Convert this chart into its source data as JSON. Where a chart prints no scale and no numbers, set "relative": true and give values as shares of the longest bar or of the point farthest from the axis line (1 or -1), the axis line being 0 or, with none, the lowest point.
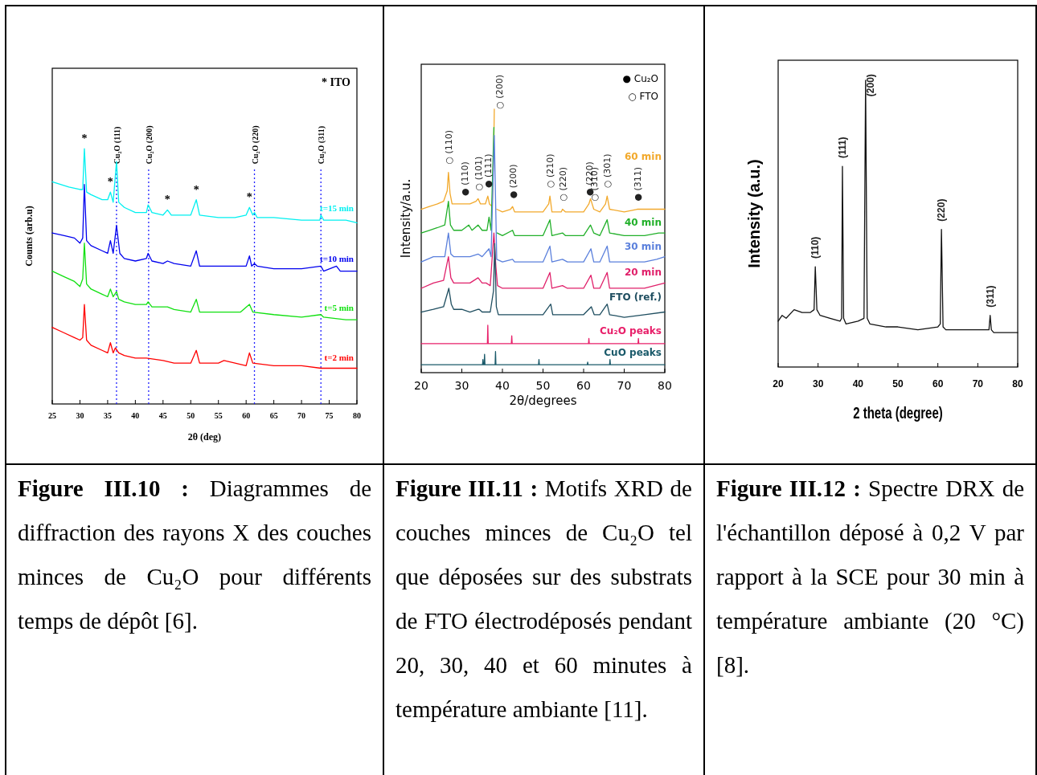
{
  "chart_data": [
    {
      "type": "line",
      "relative": true,
      "xlim": [
        25,
        80
      ],
      "xticks": [
        25,
        30,
        35,
        40,
        45,
        50,
        55,
        60,
        65,
        70,
        75,
        80
      ],
      "xlabel": "2θ  (deg)",
      "ylabel": "Counts (arb.u)",
      "series": [
        {
          "name": "t=15 min",
          "color": "#00f0f0",
          "x": [
            25,
            28,
            30,
            30.5,
            30.8,
            31.2,
            32,
            34,
            35,
            35.5,
            36,
            36.6,
            37,
            38,
            40,
            42,
            42.3,
            43,
            45,
            45.8,
            46.5,
            50,
            51,
            51.6,
            55,
            58,
            60,
            60.6,
            61.2,
            61.5,
            62,
            65,
            70,
            73.3,
            73.5,
            74,
            78,
            80
          ],
          "values": [
            0.87,
            0.85,
            0.84,
            0.84,
            1.0,
            0.83,
            0.82,
            0.8,
            0.8,
            0.83,
            0.79,
            0.95,
            0.79,
            0.77,
            0.75,
            0.75,
            0.78,
            0.75,
            0.74,
            0.76,
            0.74,
            0.74,
            0.8,
            0.74,
            0.73,
            0.73,
            0.74,
            0.77,
            0.74,
            0.75,
            0.73,
            0.73,
            0.72,
            0.72,
            0.74,
            0.72,
            0.72,
            0.71
          ]
        },
        {
          "name": "t=10 min",
          "color": "#0000ee",
          "x": [
            25,
            27,
            29,
            30,
            30.5,
            30.8,
            31.2,
            32,
            34,
            35,
            35.5,
            36,
            36.6,
            37.2,
            38,
            40,
            42,
            42.3,
            43,
            45,
            45.8,
            47,
            50,
            51,
            51.6,
            55,
            60,
            60.6,
            61,
            61.5,
            62,
            65,
            70,
            73.5,
            74,
            76.3,
            77,
            80
          ],
          "values": [
            0.67,
            0.66,
            0.65,
            0.63,
            0.65,
            0.86,
            0.64,
            0.62,
            0.6,
            0.59,
            0.64,
            0.59,
            0.7,
            0.59,
            0.57,
            0.56,
            0.57,
            0.59,
            0.56,
            0.55,
            0.56,
            0.55,
            0.54,
            0.6,
            0.54,
            0.54,
            0.54,
            0.58,
            0.54,
            0.55,
            0.54,
            0.53,
            0.53,
            0.54,
            0.52,
            0.54,
            0.52,
            0.52
          ]
        },
        {
          "name": "t=5 min",
          "color": "#10e010",
          "x": [
            25,
            27,
            29,
            30,
            30.5,
            30.8,
            31.2,
            32,
            34,
            35,
            35.5,
            36,
            36.6,
            37,
            38,
            40,
            42,
            42.3,
            43,
            45,
            45.8,
            47,
            50,
            51,
            51.6,
            55,
            59,
            60.6,
            61.2,
            65,
            70,
            73.5,
            74,
            78,
            80
          ],
          "values": [
            0.52,
            0.5,
            0.48,
            0.46,
            0.49,
            0.63,
            0.47,
            0.45,
            0.43,
            0.42,
            0.45,
            0.42,
            0.44,
            0.41,
            0.4,
            0.39,
            0.39,
            0.4,
            0.38,
            0.38,
            0.38,
            0.37,
            0.36,
            0.41,
            0.36,
            0.36,
            0.36,
            0.39,
            0.36,
            0.35,
            0.34,
            0.35,
            0.34,
            0.33,
            0.33
          ]
        },
        {
          "name": "t=2 min",
          "color": "#ff0000",
          "x": [
            25,
            27,
            29,
            30,
            30.5,
            30.8,
            31.2,
            32,
            34,
            35,
            35.5,
            36,
            36.4,
            37,
            38,
            40,
            42,
            45,
            47,
            50,
            51,
            51.6,
            55,
            56,
            60,
            60.6,
            61.2,
            65,
            70,
            73.5,
            76,
            80
          ],
          "values": [
            0.3,
            0.28,
            0.26,
            0.25,
            0.26,
            0.39,
            0.25,
            0.23,
            0.21,
            0.2,
            0.24,
            0.2,
            0.22,
            0.2,
            0.19,
            0.18,
            0.18,
            0.17,
            0.16,
            0.16,
            0.21,
            0.16,
            0.16,
            0.17,
            0.15,
            0.2,
            0.16,
            0.15,
            0.15,
            0.14,
            0.14,
            0.14
          ]
        }
      ],
      "ref_lines": [
        {
          "axis": "x",
          "value": 36.6,
          "label": "Cu₂O (111)",
          "color": "#2020ff",
          "line_style": "dotted"
        },
        {
          "axis": "x",
          "value": 42.4,
          "label": "Cu₂O (200)",
          "color": "#2020ff",
          "line_style": "dotted"
        },
        {
          "axis": "x",
          "value": 61.5,
          "label": "Cu₂O (220)",
          "color": "#2020ff",
          "line_style": "dotted"
        },
        {
          "axis": "x",
          "value": 73.5,
          "label": "Cu₂O (311)",
          "color": "#2020ff",
          "line_style": "dotted"
        }
      ],
      "annotations": [
        "Figure III.10 :",
        "Diagrammes de diffraction des rayons X des couches minces de Cu₂O pour différents temps de dépôt [6].",
        "* ITO",
        {
          "text": "*",
          "x": 30.8,
          "y": 1.0
        },
        {
          "text": "*",
          "x": 35.5,
          "y": 0.83
        },
        {
          "text": "*",
          "x": 45.8,
          "y": 0.76
        },
        {
          "text": "*",
          "x": 51,
          "y": 0.8
        },
        {
          "text": "*",
          "x": 60.6,
          "y": 0.77
        }
      ]
    },
    {
      "type": "line",
      "relative": true,
      "xlim": [
        20,
        80
      ],
      "xticks": [
        20,
        30,
        40,
        50,
        60,
        70,
        80
      ],
      "xlabel": "2θ/degrees",
      "ylabel": "Intensity/a.u.",
      "series": [
        {
          "name": "60 min",
          "color": "#f2a92c",
          "x": [
            20,
            22,
            24,
            25.5,
            26.4,
            26.7,
            27.1,
            27.6,
            30.7,
            32,
            33.5,
            34,
            34.6,
            35.8,
            36.4,
            36.8,
            37.5,
            37.9,
            38,
            38.2,
            38.6,
            40,
            42,
            42.5,
            43,
            47,
            50,
            51.4,
            51.7,
            52.2,
            54.5,
            54.8,
            55.5,
            60,
            61.3,
            61.7,
            62.5,
            64,
            65.4,
            65.8,
            66.4,
            70,
            73.2,
            78,
            80
          ],
          "values": [
            0.62,
            0.63,
            0.64,
            0.65,
            0.69,
            0.76,
            0.68,
            0.64,
            0.64,
            0.64,
            0.65,
            0.66,
            0.64,
            0.64,
            0.67,
            0.64,
            0.63,
            0.89,
            1.0,
            null,
            0.62,
            0.61,
            0.62,
            0.63,
            0.61,
            0.61,
            0.61,
            0.64,
            0.67,
            0.61,
            0.61,
            0.62,
            0.61,
            0.61,
            0.64,
            0.66,
            0.62,
            0.61,
            0.64,
            0.67,
            0.62,
            0.61,
            0.62,
            0.62,
            0.62
          ]
        },
        {
          "name": "40 min",
          "color": "#22b02a",
          "x": [
            20,
            22,
            24,
            25.8,
            26.7,
            27.2,
            28,
            30,
            31.7,
            32.5,
            34,
            35,
            36.2,
            36.7,
            37.2,
            37.9,
            38.3,
            38.7,
            40,
            42.5,
            43,
            47,
            50,
            51.7,
            52.2,
            54.8,
            55.5,
            60,
            61.7,
            62.5,
            64,
            65.8,
            66.4,
            70,
            75,
            78.5,
            80
          ],
          "values": [
            0.53,
            0.54,
            0.55,
            0.56,
            0.65,
            0.56,
            0.54,
            0.54,
            0.56,
            0.54,
            0.56,
            0.54,
            0.54,
            0.59,
            0.54,
            0.93,
            null,
            0.53,
            0.52,
            0.54,
            0.52,
            0.52,
            0.52,
            0.58,
            0.52,
            0.53,
            0.52,
            0.52,
            0.56,
            0.53,
            0.52,
            0.58,
            0.53,
            0.52,
            0.52,
            0.53,
            0.53
          ]
        },
        {
          "name": "30 min",
          "color": "#5b80dc",
          "x": [
            20,
            23,
            25.8,
            26.7,
            27.3,
            28,
            30,
            32,
            34,
            35,
            36.7,
            37.2,
            38,
            38.6,
            40,
            42.5,
            43,
            47,
            50,
            51.7,
            52.2,
            54.8,
            56,
            60,
            61.8,
            62.5,
            64,
            65.8,
            66.4,
            70,
            75,
            78,
            80
          ],
          "values": [
            0.42,
            0.44,
            0.44,
            0.53,
            0.45,
            0.44,
            0.44,
            0.44,
            0.45,
            0.44,
            0.47,
            0.44,
            0.9,
            0.43,
            0.42,
            0.43,
            0.42,
            0.42,
            0.42,
            0.48,
            0.42,
            0.43,
            0.42,
            0.42,
            0.47,
            0.42,
            0.42,
            0.48,
            0.42,
            0.42,
            0.42,
            0.43,
            0.44
          ]
        },
        {
          "name": "20 min",
          "color": "#e0206a",
          "x": [
            20,
            23,
            25.5,
            26.7,
            27.3,
            28,
            30,
            32,
            34,
            35,
            36,
            37,
            37.9,
            38.4,
            38.8,
            40,
            45,
            50,
            51.7,
            52.2,
            54.8,
            56,
            60,
            61.8,
            62.5,
            64,
            65.8,
            66.4,
            70,
            75,
            80
          ],
          "values": [
            0.32,
            0.34,
            0.35,
            0.44,
            0.36,
            0.34,
            0.34,
            0.34,
            0.36,
            0.34,
            0.34,
            0.33,
            0.53,
            0.4,
            0.33,
            0.32,
            0.32,
            0.32,
            0.38,
            0.32,
            0.33,
            0.32,
            0.32,
            0.37,
            0.32,
            0.32,
            0.38,
            0.32,
            0.32,
            0.32,
            0.34
          ]
        },
        {
          "name": "FTO (ref.)",
          "color": "#1f4e60",
          "x": [
            20,
            23,
            25.5,
            26.8,
            27.4,
            28,
            30,
            32,
            34,
            34.3,
            35,
            37,
            37.8,
            38.1,
            38.5,
            39,
            40,
            45,
            50,
            51.9,
            52.4,
            54.8,
            56,
            60,
            61.9,
            62.6,
            64,
            65.8,
            66.4,
            70,
            75,
            80
          ],
          "values": [
            0.23,
            0.24,
            0.25,
            0.32,
            0.26,
            0.24,
            0.24,
            0.23,
            0.24,
            0.24,
            0.23,
            0.23,
            0.31,
            0.49,
            0.25,
            0.22,
            0.22,
            0.22,
            0.22,
            0.26,
            0.22,
            0.22,
            0.22,
            0.22,
            0.25,
            0.22,
            0.22,
            0.26,
            0.22,
            0.21,
            0.22,
            0.23
          ]
        },
        {
          "name": "Cu₂O peaks",
          "color": "#e8206a",
          "x": [
            20,
            36.3,
            36.4,
            36.5,
            42.2,
            42.3,
            42.4,
            61.2,
            61.3,
            61.4,
            73.4,
            73.5,
            73.6,
            80
          ],
          "values": [
            0.11,
            0.11,
            0.18,
            0.11,
            0.11,
            0.14,
            0.11,
            0.11,
            0.13,
            0.11,
            0.11,
            0.13,
            0.11,
            0.11
          ]
        },
        {
          "name": "CuO peaks",
          "color": "#1a5a6a",
          "x": [
            20,
            35.1,
            35.2,
            35.3,
            35.5,
            35.6,
            35.7,
            38.2,
            38.3,
            38.4,
            48.9,
            49,
            49.1,
            60.9,
            61,
            61.1,
            66.4,
            66.5,
            66.6,
            80
          ],
          "values": [
            0.03,
            0.03,
            0.05,
            0.03,
            0.03,
            0.07,
            0.03,
            0.03,
            0.08,
            0.03,
            0.03,
            0.05,
            0.03,
            0.03,
            0.04,
            0.03,
            0.03,
            0.05,
            0.03,
            0.03
          ]
        }
      ],
      "annotations": [
        "Figure III.11 :",
        "Motifs XRD de couches minces de Cu₂O tel que déposées sur des substrats de FTO électrodéposés pendant 20, 30, 40 et 60 minutes à température ambiante [11].",
        "● Cu₂O",
        "○ FTO",
        {
          "text": "○ (110)",
          "x": 26.7,
          "y": 0.76
        },
        {
          "text": "● (110)",
          "x": 30.7,
          "y": 0.64
        },
        {
          "text": "○ (101)",
          "x": 34,
          "y": 0.66
        },
        {
          "text": "● (111)",
          "x": 36.4,
          "y": 0.67
        },
        {
          "text": "○ (200)",
          "x": 38,
          "y": 1.0
        },
        {
          "text": "● (200)",
          "x": 42.5,
          "y": 0.63
        },
        {
          "text": "○ (210)",
          "x": 51.7,
          "y": 0.67
        },
        {
          "text": "○ (220)",
          "x": 54.8,
          "y": 0.62
        },
        {
          "text": "● (220)",
          "x": 61.3,
          "y": 0.64
        },
        {
          "text": "○ (310)",
          "x": 62.5,
          "y": 0.62
        },
        {
          "text": "○ (301)",
          "x": 65.8,
          "y": 0.67
        },
        {
          "text": "● (311)",
          "x": 73.2,
          "y": 0.62
        }
      ]
    },
    {
      "type": "line",
      "relative": true,
      "xlim": [
        20,
        80
      ],
      "xticks": [
        20,
        30,
        40,
        50,
        60,
        70,
        80
      ],
      "xlabel": "2 theta (degree)",
      "ylabel": "Intensity (a.u.)",
      "series": [
        {
          "color": "#111111",
          "x": [
            20,
            21,
            22,
            24,
            26,
            28,
            29,
            29.3,
            29.7,
            30.5,
            33,
            35.5,
            35.9,
            36.1,
            36.4,
            37,
            40,
            41.5,
            41.9,
            42.3,
            43,
            47,
            50,
            55,
            60,
            60.6,
            60.9,
            61.3,
            62,
            65,
            70,
            72.8,
            73.1,
            73.4,
            74,
            77,
            80
          ],
          "values": [
            0.16,
            0.18,
            0.17,
            0.2,
            0.19,
            0.19,
            0.2,
            0.35,
            0.2,
            0.18,
            0.17,
            0.16,
            0.17,
            0.7,
            0.17,
            0.15,
            0.16,
            0.17,
            1.0,
            0.17,
            0.15,
            0.14,
            0.14,
            0.13,
            0.14,
            0.15,
            0.48,
            0.14,
            0.13,
            0.13,
            0.13,
            0.13,
            0.18,
            0.13,
            0.12,
            0.12,
            0.12
          ]
        }
      ],
      "annotations": [
        "Figure III.12 :",
        "Spectre DRX de l'échantillon déposé à 0,2 V par rapport à la SCE pour 30 min à température ambiante (20 °C) [8].",
        {
          "text": "(110)",
          "x": 29.3,
          "y": 0.35
        },
        {
          "text": "(111)",
          "x": 36.1,
          "y": 0.7
        },
        {
          "text": "(200)",
          "x": 41.9,
          "y": 1.0
        },
        {
          "text": "(220)",
          "x": 60.9,
          "y": 0.48
        },
        {
          "text": "(311)",
          "x": 73.1,
          "y": 0.18
        }
      ]
    }
  ]
}
